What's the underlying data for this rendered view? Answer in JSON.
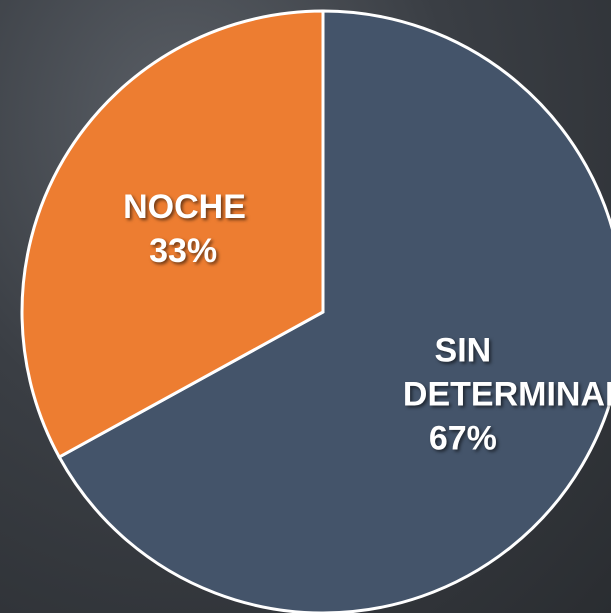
{
  "chart_data": {
    "type": "pie",
    "categories": [
      "SIN DETERMINAR",
      "NOCHE"
    ],
    "values": [
      67,
      33
    ],
    "value_labels": [
      "67%",
      "33%"
    ],
    "colors": [
      "#44546a",
      "#ed7d31"
    ]
  }
}
